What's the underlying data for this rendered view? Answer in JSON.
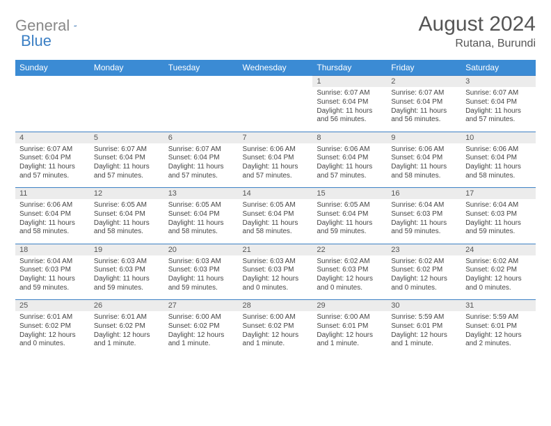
{
  "brand": {
    "part1": "General",
    "part2": "Blue"
  },
  "header": {
    "title": "August 2024",
    "location": "Rutana, Burundi"
  },
  "colors": {
    "header_bg": "#3b8bd4",
    "header_text": "#ffffff",
    "daynum_bg": "#ececec",
    "accent": "#3b7fc4",
    "text": "#444444"
  },
  "font": {
    "family": "Arial",
    "title_size": 30,
    "head_size": 12,
    "cell_size": 10
  },
  "weekdays": [
    "Sunday",
    "Monday",
    "Tuesday",
    "Wednesday",
    "Thursday",
    "Friday",
    "Saturday"
  ],
  "weeks": [
    {
      "nums": [
        "",
        "",
        "",
        "",
        "1",
        "2",
        "3"
      ],
      "cells": [
        null,
        null,
        null,
        null,
        {
          "sunrise": "Sunrise: 6:07 AM",
          "sunset": "Sunset: 6:04 PM",
          "day1": "Daylight: 11 hours",
          "day2": "and 56 minutes."
        },
        {
          "sunrise": "Sunrise: 6:07 AM",
          "sunset": "Sunset: 6:04 PM",
          "day1": "Daylight: 11 hours",
          "day2": "and 56 minutes."
        },
        {
          "sunrise": "Sunrise: 6:07 AM",
          "sunset": "Sunset: 6:04 PM",
          "day1": "Daylight: 11 hours",
          "day2": "and 57 minutes."
        }
      ]
    },
    {
      "nums": [
        "4",
        "5",
        "6",
        "7",
        "8",
        "9",
        "10"
      ],
      "cells": [
        {
          "sunrise": "Sunrise: 6:07 AM",
          "sunset": "Sunset: 6:04 PM",
          "day1": "Daylight: 11 hours",
          "day2": "and 57 minutes."
        },
        {
          "sunrise": "Sunrise: 6:07 AM",
          "sunset": "Sunset: 6:04 PM",
          "day1": "Daylight: 11 hours",
          "day2": "and 57 minutes."
        },
        {
          "sunrise": "Sunrise: 6:07 AM",
          "sunset": "Sunset: 6:04 PM",
          "day1": "Daylight: 11 hours",
          "day2": "and 57 minutes."
        },
        {
          "sunrise": "Sunrise: 6:06 AM",
          "sunset": "Sunset: 6:04 PM",
          "day1": "Daylight: 11 hours",
          "day2": "and 57 minutes."
        },
        {
          "sunrise": "Sunrise: 6:06 AM",
          "sunset": "Sunset: 6:04 PM",
          "day1": "Daylight: 11 hours",
          "day2": "and 57 minutes."
        },
        {
          "sunrise": "Sunrise: 6:06 AM",
          "sunset": "Sunset: 6:04 PM",
          "day1": "Daylight: 11 hours",
          "day2": "and 58 minutes."
        },
        {
          "sunrise": "Sunrise: 6:06 AM",
          "sunset": "Sunset: 6:04 PM",
          "day1": "Daylight: 11 hours",
          "day2": "and 58 minutes."
        }
      ]
    },
    {
      "nums": [
        "11",
        "12",
        "13",
        "14",
        "15",
        "16",
        "17"
      ],
      "cells": [
        {
          "sunrise": "Sunrise: 6:06 AM",
          "sunset": "Sunset: 6:04 PM",
          "day1": "Daylight: 11 hours",
          "day2": "and 58 minutes."
        },
        {
          "sunrise": "Sunrise: 6:05 AM",
          "sunset": "Sunset: 6:04 PM",
          "day1": "Daylight: 11 hours",
          "day2": "and 58 minutes."
        },
        {
          "sunrise": "Sunrise: 6:05 AM",
          "sunset": "Sunset: 6:04 PM",
          "day1": "Daylight: 11 hours",
          "day2": "and 58 minutes."
        },
        {
          "sunrise": "Sunrise: 6:05 AM",
          "sunset": "Sunset: 6:04 PM",
          "day1": "Daylight: 11 hours",
          "day2": "and 58 minutes."
        },
        {
          "sunrise": "Sunrise: 6:05 AM",
          "sunset": "Sunset: 6:04 PM",
          "day1": "Daylight: 11 hours",
          "day2": "and 59 minutes."
        },
        {
          "sunrise": "Sunrise: 6:04 AM",
          "sunset": "Sunset: 6:03 PM",
          "day1": "Daylight: 11 hours",
          "day2": "and 59 minutes."
        },
        {
          "sunrise": "Sunrise: 6:04 AM",
          "sunset": "Sunset: 6:03 PM",
          "day1": "Daylight: 11 hours",
          "day2": "and 59 minutes."
        }
      ]
    },
    {
      "nums": [
        "18",
        "19",
        "20",
        "21",
        "22",
        "23",
        "24"
      ],
      "cells": [
        {
          "sunrise": "Sunrise: 6:04 AM",
          "sunset": "Sunset: 6:03 PM",
          "day1": "Daylight: 11 hours",
          "day2": "and 59 minutes."
        },
        {
          "sunrise": "Sunrise: 6:03 AM",
          "sunset": "Sunset: 6:03 PM",
          "day1": "Daylight: 11 hours",
          "day2": "and 59 minutes."
        },
        {
          "sunrise": "Sunrise: 6:03 AM",
          "sunset": "Sunset: 6:03 PM",
          "day1": "Daylight: 11 hours",
          "day2": "and 59 minutes."
        },
        {
          "sunrise": "Sunrise: 6:03 AM",
          "sunset": "Sunset: 6:03 PM",
          "day1": "Daylight: 12 hours",
          "day2": "and 0 minutes."
        },
        {
          "sunrise": "Sunrise: 6:02 AM",
          "sunset": "Sunset: 6:03 PM",
          "day1": "Daylight: 12 hours",
          "day2": "and 0 minutes."
        },
        {
          "sunrise": "Sunrise: 6:02 AM",
          "sunset": "Sunset: 6:02 PM",
          "day1": "Daylight: 12 hours",
          "day2": "and 0 minutes."
        },
        {
          "sunrise": "Sunrise: 6:02 AM",
          "sunset": "Sunset: 6:02 PM",
          "day1": "Daylight: 12 hours",
          "day2": "and 0 minutes."
        }
      ]
    },
    {
      "nums": [
        "25",
        "26",
        "27",
        "28",
        "29",
        "30",
        "31"
      ],
      "cells": [
        {
          "sunrise": "Sunrise: 6:01 AM",
          "sunset": "Sunset: 6:02 PM",
          "day1": "Daylight: 12 hours",
          "day2": "and 0 minutes."
        },
        {
          "sunrise": "Sunrise: 6:01 AM",
          "sunset": "Sunset: 6:02 PM",
          "day1": "Daylight: 12 hours",
          "day2": "and 1 minute."
        },
        {
          "sunrise": "Sunrise: 6:00 AM",
          "sunset": "Sunset: 6:02 PM",
          "day1": "Daylight: 12 hours",
          "day2": "and 1 minute."
        },
        {
          "sunrise": "Sunrise: 6:00 AM",
          "sunset": "Sunset: 6:02 PM",
          "day1": "Daylight: 12 hours",
          "day2": "and 1 minute."
        },
        {
          "sunrise": "Sunrise: 6:00 AM",
          "sunset": "Sunset: 6:01 PM",
          "day1": "Daylight: 12 hours",
          "day2": "and 1 minute."
        },
        {
          "sunrise": "Sunrise: 5:59 AM",
          "sunset": "Sunset: 6:01 PM",
          "day1": "Daylight: 12 hours",
          "day2": "and 1 minute."
        },
        {
          "sunrise": "Sunrise: 5:59 AM",
          "sunset": "Sunset: 6:01 PM",
          "day1": "Daylight: 12 hours",
          "day2": "and 2 minutes."
        }
      ]
    }
  ]
}
